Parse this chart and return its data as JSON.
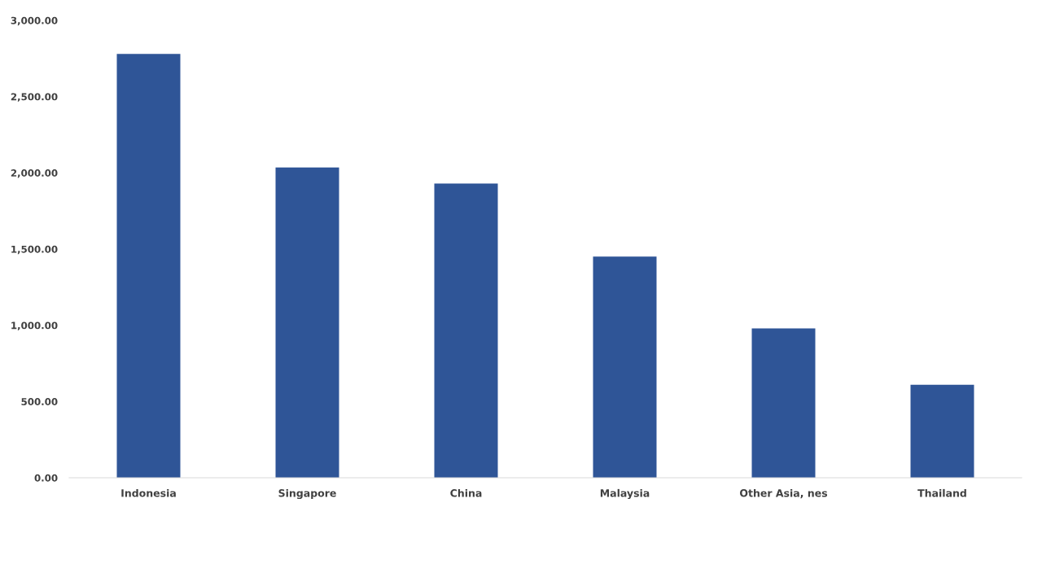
{
  "chart_data": {
    "type": "bar",
    "categories": [
      "Indonesia",
      "Singapore",
      "China",
      "Malaysia",
      "Other Asia, nes",
      "Thailand"
    ],
    "values": [
      2780,
      2035,
      1930,
      1450,
      980,
      610
    ],
    "color": "#2f5597",
    "ylim": [
      0,
      3000
    ],
    "yticks": [
      {
        "value": 0,
        "label": "0.00"
      },
      {
        "value": 500,
        "label": "500.00"
      },
      {
        "value": 1000,
        "label": "1,000.00"
      },
      {
        "value": 1500,
        "label": "1,500.00"
      },
      {
        "value": 2000,
        "label": "2,000.00"
      },
      {
        "value": 2500,
        "label": "2,500.00"
      },
      {
        "value": 3000,
        "label": "3,000.00"
      }
    ],
    "grid": false
  }
}
